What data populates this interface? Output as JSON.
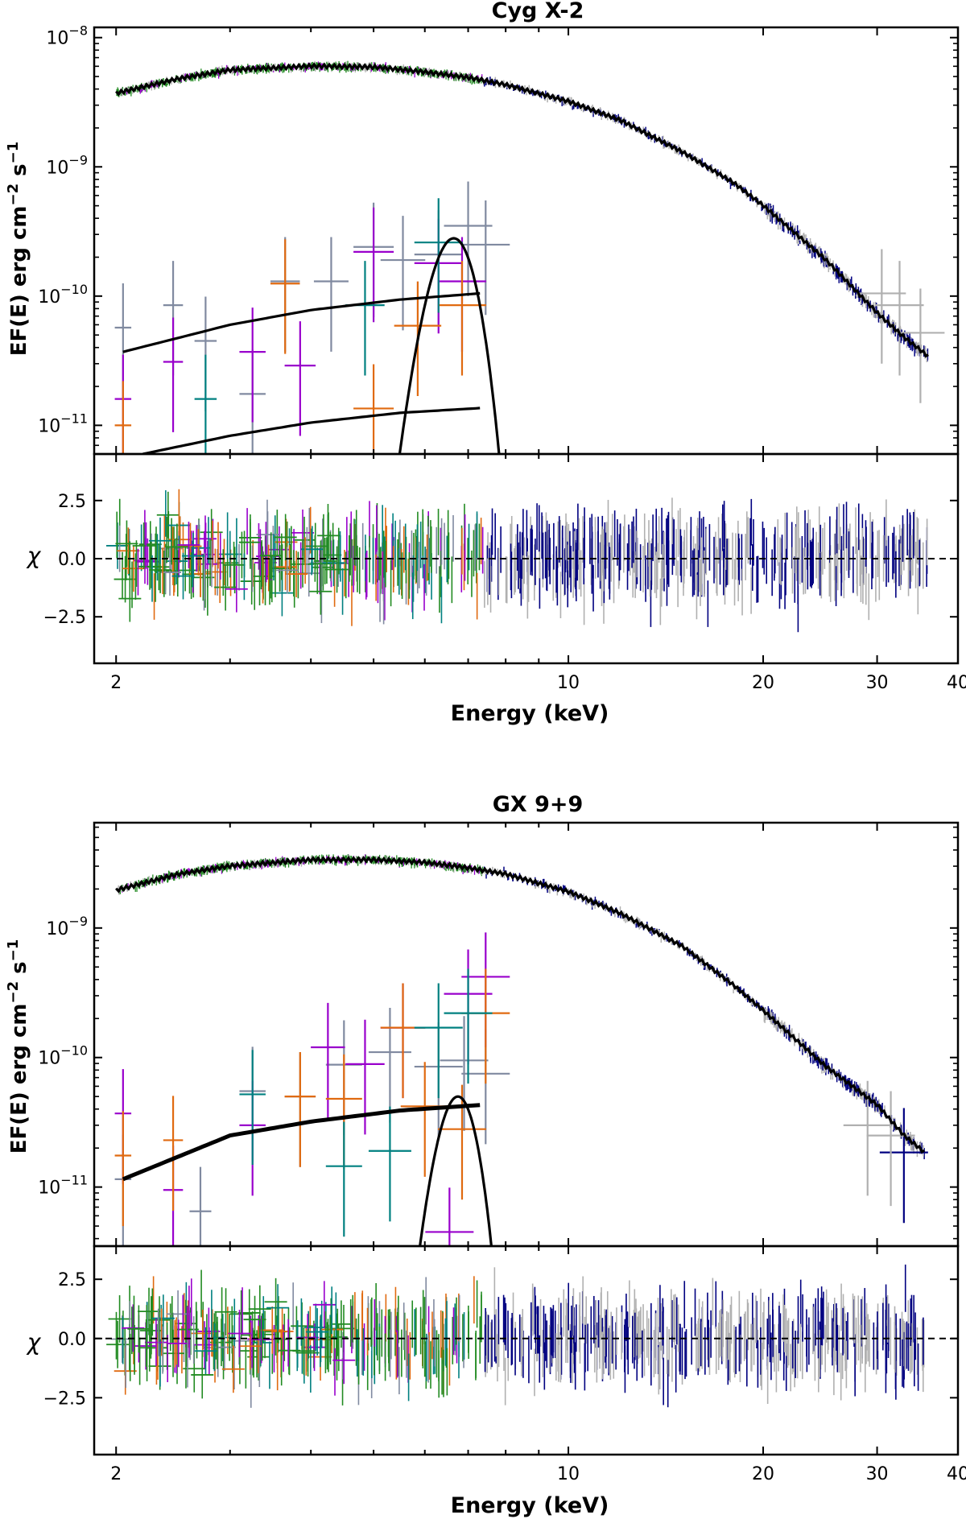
{
  "chart_data": [
    {
      "type": "scatter",
      "title": "Cyg X-2",
      "xlabel": "Energy (keV)",
      "ylabel": "EF(E) erg cm^-2 s^-1",
      "residual_label": "χ",
      "xscale": "log",
      "yscale": "log",
      "xlim": [
        1.85,
        40
      ],
      "ylim": [
        6e-12,
        1.2e-08
      ],
      "residual_ylim": [
        -4.5,
        4.5
      ],
      "xticks": [
        {
          "value": 2,
          "label": "2"
        },
        {
          "value": 10,
          "label": "10"
        },
        {
          "value": 20,
          "label": "20"
        },
        {
          "value": 30,
          "label": "30"
        },
        {
          "value": 40,
          "label": "40"
        }
      ],
      "yticks": [
        {
          "value": 1e-11,
          "base": "10",
          "exp": "−11"
        },
        {
          "value": 1e-10,
          "base": "10",
          "exp": "−10"
        },
        {
          "value": 1e-09,
          "base": "10",
          "exp": "−9"
        },
        {
          "value": 1e-08,
          "base": "10",
          "exp": "−8"
        }
      ],
      "residual_yticks": [
        {
          "value": 2.5,
          "label": "2.5"
        },
        {
          "value": 0,
          "label": "0.0"
        },
        {
          "value": -2.5,
          "label": "−2.5"
        }
      ],
      "model": {
        "continuum": [
          [
            2.0,
            3.7e-09
          ],
          [
            2.5,
            4.8e-09
          ],
          [
            3.0,
            5.6e-09
          ],
          [
            4.0,
            6e-09
          ],
          [
            5.0,
            5.9e-09
          ],
          [
            6.0,
            5.4e-09
          ],
          [
            7.0,
            4.9e-09
          ],
          [
            8.0,
            4.3e-09
          ],
          [
            10.0,
            3.2e-09
          ],
          [
            12.0,
            2.3e-09
          ],
          [
            15.0,
            1.3e-09
          ],
          [
            18.0,
            7.5e-10
          ],
          [
            20.0,
            5e-10
          ],
          [
            25.0,
            1.9e-10
          ],
          [
            30.0,
            7.4e-11
          ],
          [
            33.0,
            4.8e-11
          ],
          [
            36.0,
            3.4e-11
          ]
        ],
        "components": [
          [
            [
              2.05,
              3.7e-11
            ],
            [
              3.0,
              6e-11
            ],
            [
              4.0,
              7.8e-11
            ],
            [
              5.5,
              9.4e-11
            ],
            [
              7.3,
              1.05e-10
            ]
          ],
          [
            [
              2.2,
              6e-12
            ],
            [
              3.0,
              8.3e-12
            ],
            [
              4.0,
              1.05e-11
            ],
            [
              5.5,
              1.25e-11
            ],
            [
              7.3,
              1.36e-11
            ]
          ],
          {
            "type": "gaussian",
            "center": 6.65,
            "sigma": 0.42,
            "peak": 2.8e-10
          }
        ]
      },
      "series": [
        {
          "name": "",
          "color": "#808aa0",
          "points": [
            [
              2.05,
              5.7e-11
            ],
            [
              2.45,
              8.5e-11
            ],
            [
              2.75,
              4.5e-11
            ],
            [
              3.25,
              1.75e-11
            ],
            [
              3.65,
              1.3e-10
            ],
            [
              4.3,
              1.3e-10
            ],
            [
              5.0,
              2.4e-10
            ],
            [
              5.55,
              1.9e-10
            ],
            [
              6.3,
              2.1e-10
            ],
            [
              7.0,
              3.5e-10
            ],
            [
              7.45,
              2.5e-10
            ]
          ]
        },
        {
          "name": "",
          "color": "#9900cc",
          "points": [
            [
              2.05,
              1.6e-11
            ],
            [
              2.45,
              3.1e-11
            ],
            [
              3.25,
              3.7e-11
            ],
            [
              3.85,
              2.9e-11
            ],
            [
              5.0,
              2.2e-10
            ],
            [
              6.3,
              1.8e-10
            ],
            [
              6.85,
              1.3e-10
            ]
          ]
        },
        {
          "name": "",
          "color": "#e06a10",
          "points": [
            [
              2.05,
              1e-11
            ],
            [
              3.65,
              1.25e-10
            ],
            [
              5.0,
              1.35e-11
            ],
            [
              5.85,
              5.9e-11
            ],
            [
              6.85,
              8.5e-11
            ]
          ]
        },
        {
          "name": "",
          "color": "#008080",
          "points": [
            [
              2.75,
              1.6e-11
            ],
            [
              4.85,
              8.5e-11
            ],
            [
              6.3,
              2.6e-10
            ]
          ]
        },
        {
          "name": "",
          "color": "#228b22",
          "points": []
        },
        {
          "name": "",
          "color": "#000080",
          "points": []
        },
        {
          "name": "",
          "color": "#b0b0b0",
          "points": [
            [
              30.5,
              1.05e-10
            ],
            [
              32.5,
              8.5e-11
            ],
            [
              35.0,
              5.2e-11
            ]
          ]
        }
      ]
    },
    {
      "type": "scatter",
      "title": "GX 9+9",
      "xlabel": "Energy (keV)",
      "ylabel": "EF(E) erg cm^-2 s^-1",
      "residual_label": "χ",
      "xscale": "log",
      "yscale": "log",
      "xlim": [
        1.85,
        40
      ],
      "ylim": [
        3.5e-12,
        6.5e-09
      ],
      "residual_ylim": [
        -4.9,
        3.9
      ],
      "xticks": [
        {
          "value": 2,
          "label": "2"
        },
        {
          "value": 10,
          "label": "10"
        },
        {
          "value": 20,
          "label": "20"
        },
        {
          "value": 30,
          "label": "30"
        },
        {
          "value": 40,
          "label": "40"
        }
      ],
      "yticks": [
        {
          "value": 1e-11,
          "base": "10",
          "exp": "−11"
        },
        {
          "value": 1e-10,
          "base": "10",
          "exp": "−10"
        },
        {
          "value": 1e-09,
          "base": "10",
          "exp": "−9"
        }
      ],
      "residual_yticks": [
        {
          "value": 2.5,
          "label": "2.5"
        },
        {
          "value": 0,
          "label": "0.0"
        },
        {
          "value": -2.5,
          "label": "−2.5"
        }
      ],
      "model": {
        "continuum": [
          [
            2.0,
            1.95e-09
          ],
          [
            2.5,
            2.6e-09
          ],
          [
            3.0,
            3e-09
          ],
          [
            4.0,
            3.35e-09
          ],
          [
            5.0,
            3.35e-09
          ],
          [
            6.0,
            3.2e-09
          ],
          [
            7.0,
            2.9e-09
          ],
          [
            8.0,
            2.6e-09
          ],
          [
            10.0,
            1.9e-09
          ],
          [
            12.0,
            1.3e-09
          ],
          [
            15.0,
            7.2e-10
          ],
          [
            18.0,
            3.6e-10
          ],
          [
            20.0,
            2.3e-10
          ],
          [
            25.0,
            8.5e-11
          ],
          [
            30.0,
            4.3e-11
          ],
          [
            33.0,
            2.5e-11
          ],
          [
            35.5,
            1.85e-11
          ]
        ],
        "components": [
          [
            [
              2.05,
              1.15e-11
            ],
            [
              3.0,
              2.5e-11
            ],
            [
              4.0,
              3.2e-11
            ],
            [
              5.5,
              3.9e-11
            ],
            [
              7.3,
              4.3e-11
            ]
          ],
          {
            "type": "gaussian",
            "center": 6.75,
            "sigma": 0.37,
            "peak": 5e-11
          }
        ]
      },
      "series": [
        {
          "name": "",
          "color": "#808aa0",
          "points": [
            [
              2.05,
              1.15e-11
            ],
            [
              2.7,
              6.5e-12
            ],
            [
              3.25,
              5.5e-11
            ],
            [
              3.85,
              5e-11
            ],
            [
              4.5,
              8.8e-11
            ],
            [
              5.3,
              1.1e-10
            ],
            [
              6.3,
              8.5e-11
            ],
            [
              6.9,
              9.5e-11
            ],
            [
              7.45,
              7.5e-11
            ]
          ]
        },
        {
          "name": "",
          "color": "#9900cc",
          "points": [
            [
              2.05,
              3.7e-11
            ],
            [
              2.45,
              9.5e-12
            ],
            [
              3.25,
              3e-11
            ],
            [
              4.25,
              1.2e-10
            ],
            [
              4.85,
              8.9e-11
            ],
            [
              5.55,
              1.7e-10
            ],
            [
              6.55,
              4.5e-12
            ],
            [
              7.0,
              3.1e-10
            ],
            [
              7.45,
              4.2e-10
            ]
          ]
        },
        {
          "name": "",
          "color": "#e06a10",
          "points": [
            [
              2.05,
              1.75e-11
            ],
            [
              2.45,
              2.3e-11
            ],
            [
              3.85,
              5e-11
            ],
            [
              4.5,
              4.8e-11
            ],
            [
              5.55,
              1.7e-10
            ],
            [
              6.0,
              4.2e-11
            ],
            [
              6.85,
              2.8e-11
            ],
            [
              7.45,
              2.2e-10
            ]
          ]
        },
        {
          "name": "",
          "color": "#008080",
          "points": [
            [
              3.25,
              5.2e-11
            ],
            [
              4.5,
              1.45e-11
            ],
            [
              5.3,
              1.9e-11
            ],
            [
              6.3,
              1.7e-10
            ],
            [
              7.0,
              2.2e-10
            ]
          ]
        },
        {
          "name": "",
          "color": "#228b22",
          "points": []
        },
        {
          "name": "",
          "color": "#000080",
          "points": [
            [
              33.0,
              1.85e-11
            ]
          ]
        },
        {
          "name": "",
          "color": "#b0b0b0",
          "points": [
            [
              29.0,
              3e-11
            ],
            [
              31.5,
              2.5e-11
            ]
          ]
        }
      ]
    }
  ]
}
